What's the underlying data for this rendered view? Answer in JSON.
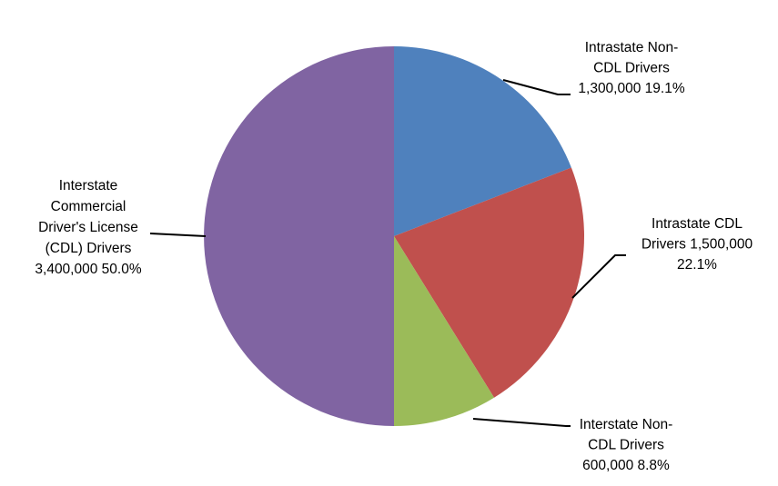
{
  "chart_data": {
    "type": "pie",
    "title": "",
    "start_angle_deg": 0,
    "direction": "clockwise",
    "slices": [
      {
        "label": "Intrastate Non-CDL Drivers",
        "value": 1300000,
        "percent": 19.1,
        "color": "#4F81BD",
        "label_lines": [
          "Intrastate Non-",
          "CDL Drivers",
          "1,300,000 19.1%"
        ]
      },
      {
        "label": "Intrastate CDL Drivers",
        "value": 1500000,
        "percent": 22.1,
        "color": "#C0504D",
        "label_lines": [
          "Intrastate CDL",
          "Drivers 1,500,000",
          "22.1%"
        ]
      },
      {
        "label": "Interstate Non-CDL Drivers",
        "value": 600000,
        "percent": 8.8,
        "color": "#9BBB59",
        "label_lines": [
          "Interstate Non-",
          "CDL Drivers",
          "600,000 8.8%"
        ]
      },
      {
        "label": "Interstate Commercial Driver's License (CDL) Drivers",
        "value": 3400000,
        "percent": 50.0,
        "color": "#8064A2",
        "label_lines": [
          "Interstate",
          "Commercial",
          "Driver's License",
          "(CDL) Drivers",
          "3,400,000 50.0%"
        ]
      }
    ]
  }
}
